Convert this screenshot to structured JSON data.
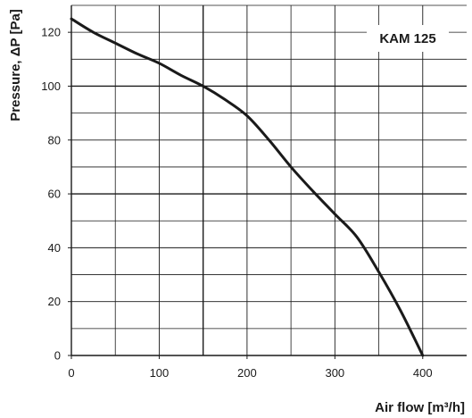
{
  "chart_data": {
    "type": "line",
    "title": "",
    "xlabel": "Air flow [m³/h]",
    "ylabel": "Pressure, ΔP [Pa]",
    "xlim": [
      0,
      450
    ],
    "ylim": [
      0,
      130
    ],
    "x_ticks": [
      0,
      100,
      200,
      300,
      400
    ],
    "y_ticks": [
      0,
      20,
      40,
      60,
      80,
      100,
      120
    ],
    "x_tick_labels": [
      "0",
      "100",
      "200",
      "300",
      "400"
    ],
    "y_tick_labels": [
      "0",
      "20",
      "40",
      "60",
      "80",
      "100",
      "120"
    ],
    "x_minor_step": 50,
    "y_minor_step": 10,
    "grid": true,
    "legend_position": "top-right",
    "series": [
      {
        "name": "KAM 125",
        "color": "#1a1a1a",
        "points": [
          [
            0,
            125
          ],
          [
            25,
            120
          ],
          [
            50,
            116
          ],
          [
            75,
            112
          ],
          [
            100,
            108.5
          ],
          [
            125,
            104
          ],
          [
            150,
            100
          ],
          [
            175,
            95
          ],
          [
            200,
            89
          ],
          [
            225,
            80
          ],
          [
            250,
            70
          ],
          [
            275,
            61
          ],
          [
            300,
            52.5
          ],
          [
            325,
            44
          ],
          [
            350,
            31
          ],
          [
            375,
            16.5
          ],
          [
            400,
            0
          ]
        ]
      }
    ]
  }
}
